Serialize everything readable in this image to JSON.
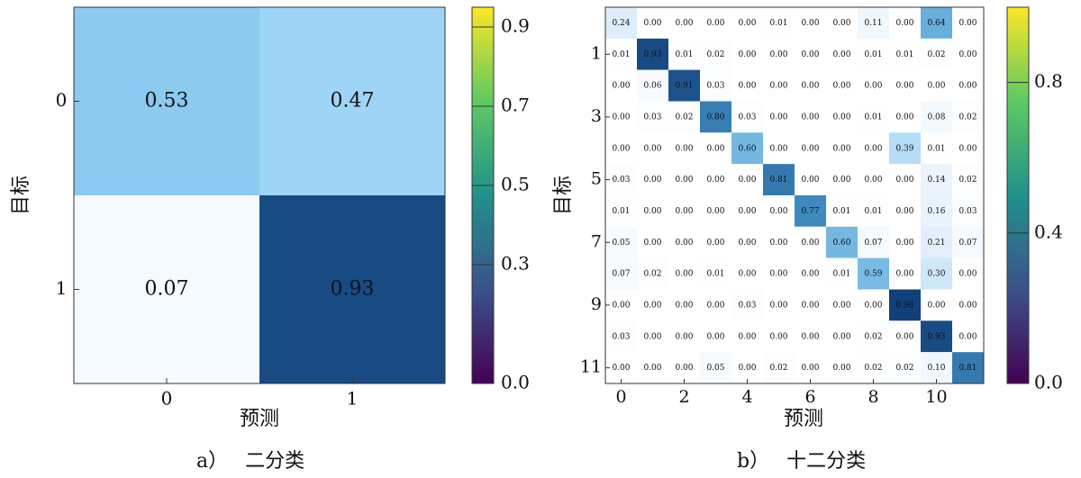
{
  "chart_data": [
    {
      "type": "heatmap",
      "title": "二分类",
      "caption_prefix": "a）",
      "xlabel": "预测",
      "ylabel": "目标",
      "x_ticks": [
        "0",
        "1"
      ],
      "y_ticks": [
        "0",
        "1"
      ],
      "matrix": [
        [
          0.53,
          0.47
        ],
        [
          0.07,
          0.93
        ]
      ],
      "cell_labels": [
        [
          "0.53",
          "0.47"
        ],
        [
          "0.07",
          "0.93"
        ]
      ],
      "colorbar": {
        "range": [
          0.0,
          0.95
        ],
        "ticks": [
          "0.0",
          "0.3",
          "0.5",
          "0.7",
          "0.9"
        ]
      }
    },
    {
      "type": "heatmap",
      "title": "十二分类",
      "caption_prefix": "b）",
      "xlabel": "预测",
      "ylabel": "目标",
      "x_ticks": [
        "0",
        "2",
        "4",
        "6",
        "8",
        "10"
      ],
      "y_ticks": [
        "1",
        "3",
        "5",
        "7",
        "9",
        "11"
      ],
      "matrix": [
        [
          0.24,
          0.0,
          0.0,
          0.0,
          0.0,
          0.01,
          0.0,
          0.0,
          0.11,
          0.0,
          0.64,
          0.0
        ],
        [
          0.01,
          0.93,
          0.01,
          0.02,
          0.0,
          0.0,
          0.0,
          0.0,
          0.01,
          0.01,
          0.02,
          0.0
        ],
        [
          0.0,
          0.06,
          0.91,
          0.03,
          0.0,
          0.0,
          0.0,
          0.0,
          0.0,
          0.0,
          0.0,
          0.0
        ],
        [
          0.0,
          0.03,
          0.02,
          0.8,
          0.03,
          0.0,
          0.0,
          0.0,
          0.01,
          0.0,
          0.08,
          0.02
        ],
        [
          0.0,
          0.0,
          0.0,
          0.0,
          0.6,
          0.0,
          0.0,
          0.0,
          0.0,
          0.39,
          0.01,
          0.0
        ],
        [
          0.03,
          0.0,
          0.0,
          0.0,
          0.0,
          0.81,
          0.0,
          0.0,
          0.0,
          0.0,
          0.14,
          0.02
        ],
        [
          0.01,
          0.0,
          0.0,
          0.0,
          0.0,
          0.0,
          0.77,
          0.01,
          0.01,
          0.0,
          0.16,
          0.03
        ],
        [
          0.05,
          0.0,
          0.0,
          0.0,
          0.0,
          0.0,
          0.0,
          0.6,
          0.07,
          0.0,
          0.21,
          0.07
        ],
        [
          0.07,
          0.02,
          0.0,
          0.01,
          0.0,
          0.0,
          0.0,
          0.01,
          0.59,
          0.0,
          0.3,
          0.0
        ],
        [
          0.0,
          0.0,
          0.0,
          0.0,
          0.03,
          0.0,
          0.0,
          0.0,
          0.0,
          0.96,
          0.0,
          0.0
        ],
        [
          0.03,
          0.0,
          0.0,
          0.0,
          0.0,
          0.0,
          0.0,
          0.0,
          0.02,
          0.0,
          0.93,
          0.0
        ],
        [
          0.0,
          0.0,
          0.0,
          0.05,
          0.0,
          0.02,
          0.0,
          0.0,
          0.02,
          0.02,
          0.1,
          0.81
        ]
      ],
      "cell_labels": [
        [
          "0.24",
          "0.00",
          "0.00",
          "0.00",
          "0.00",
          "0.01",
          "0.00",
          "0.00",
          "0.11",
          "0.00",
          "0.64",
          "0.00"
        ],
        [
          "0.01",
          "0.93",
          "0.01",
          "0.02",
          "0.00",
          "0.00",
          "0.00",
          "0.00",
          "0.01",
          "0.01",
          "0.02",
          "0.00"
        ],
        [
          "0.00",
          "0.06",
          "0.91",
          "0.03",
          "0.00",
          "0.00",
          "0.00",
          "0.00",
          "0.00",
          "0.00",
          "0.00",
          "0.00"
        ],
        [
          "0.00",
          "0.03",
          "0.02",
          "0.80",
          "0.03",
          "0.00",
          "0.00",
          "0.00",
          "0.01",
          "0.00",
          "0.08",
          "0.02"
        ],
        [
          "0.00",
          "0.00",
          "0.00",
          "0.00",
          "0.60",
          "0.00",
          "0.00",
          "0.00",
          "0.00",
          "0.39",
          "0.01",
          "0.00"
        ],
        [
          "0.03",
          "0.00",
          "0.00",
          "0.00",
          "0.00",
          "0.81",
          "0.00",
          "0.00",
          "0.00",
          "0.00",
          "0.14",
          "0.02"
        ],
        [
          "0.01",
          "0.00",
          "0.00",
          "0.00",
          "0.00",
          "0.00",
          "0.77",
          "0.01",
          "0.01",
          "0.00",
          "0.16",
          "0.03"
        ],
        [
          "0.05",
          "0.00",
          "0.00",
          "0.00",
          "0.00",
          "0.00",
          "0.00",
          "0.60",
          "0.07",
          "0.00",
          "0.21",
          "0.07"
        ],
        [
          "0.07",
          "0.02",
          "0.00",
          "0.01",
          "0.00",
          "0.00",
          "0.00",
          "0.01",
          "0.59",
          "0.00",
          "0.30",
          "0.00"
        ],
        [
          "0.00",
          "0.00",
          "0.00",
          "0.00",
          "0.03",
          "0.00",
          "0.00",
          "0.00",
          "0.00",
          "0.96",
          "0.00",
          "0.00"
        ],
        [
          "0.03",
          "0.00",
          "0.00",
          "0.00",
          "0.00",
          "0.00",
          "0.00",
          "0.00",
          "0.02",
          "0.00",
          "0.93",
          "0.00"
        ],
        [
          "0.00",
          "0.00",
          "0.00",
          "0.05",
          "0.00",
          "0.02",
          "0.00",
          "0.00",
          "0.02",
          "0.02",
          "0.10",
          "0.81"
        ]
      ],
      "colorbar": {
        "range": [
          0.0,
          1.0
        ],
        "ticks": [
          "0.0",
          "0.4",
          "0.8"
        ]
      }
    }
  ]
}
